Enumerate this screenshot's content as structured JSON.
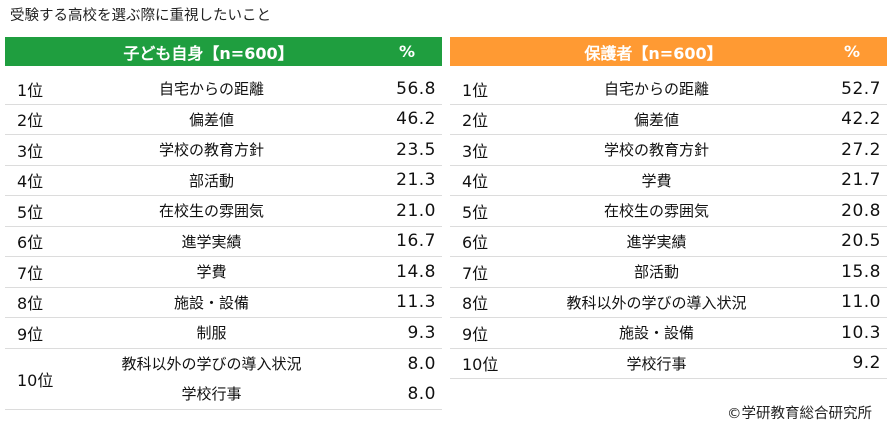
{
  "page_title": "受験する高校を選ぶ際に重視したいこと",
  "colors": {
    "left_header": "#1f9e3f",
    "right_header": "#ff9a33"
  },
  "left_table": {
    "header_label": "子ども自身【n=600】",
    "header_pct": "%",
    "rows": [
      {
        "rank": "1位",
        "item": "自宅からの距離",
        "value": "56.8"
      },
      {
        "rank": "2位",
        "item": "偏差値",
        "value": "46.2"
      },
      {
        "rank": "3位",
        "item": "学校の教育方針",
        "value": "23.5"
      },
      {
        "rank": "4位",
        "item": "部活動",
        "value": "21.3"
      },
      {
        "rank": "5位",
        "item": "在校生の雰囲気",
        "value": "21.0"
      },
      {
        "rank": "6位",
        "item": "進学実績",
        "value": "16.7"
      },
      {
        "rank": "7位",
        "item": "学費",
        "value": "14.8"
      },
      {
        "rank": "8位",
        "item": "施設・設備",
        "value": "11.3"
      },
      {
        "rank": "9位",
        "item": "制服",
        "value": "9.3"
      }
    ],
    "tie_row": {
      "rank": "10位",
      "items": [
        {
          "item": "教科以外の学びの導入状況",
          "value": "8.0"
        },
        {
          "item": "学校行事",
          "value": "8.0"
        }
      ]
    }
  },
  "right_table": {
    "header_label": "保護者【n=600】",
    "header_pct": "%",
    "rows": [
      {
        "rank": "1位",
        "item": "自宅からの距離",
        "value": "52.7"
      },
      {
        "rank": "2位",
        "item": "偏差値",
        "value": "42.2"
      },
      {
        "rank": "3位",
        "item": "学校の教育方針",
        "value": "27.2"
      },
      {
        "rank": "4位",
        "item": "学費",
        "value": "21.7"
      },
      {
        "rank": "5位",
        "item": "在校生の雰囲気",
        "value": "20.8"
      },
      {
        "rank": "6位",
        "item": "進学実績",
        "value": "20.5"
      },
      {
        "rank": "7位",
        "item": "部活動",
        "value": "15.8"
      },
      {
        "rank": "8位",
        "item": "教科以外の学びの導入状況",
        "value": "11.0"
      },
      {
        "rank": "9位",
        "item": "施設・設備",
        "value": "10.3"
      },
      {
        "rank": "10位",
        "item": "学校行事",
        "value": "9.2"
      }
    ]
  },
  "credit": "©学研教育総合研究所"
}
